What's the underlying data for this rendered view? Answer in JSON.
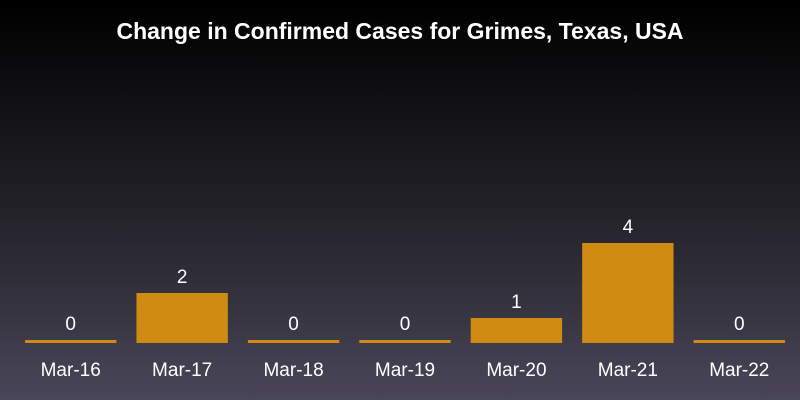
{
  "chart_data": {
    "type": "bar",
    "title": "Change in Confirmed Cases for Grimes, Texas, USA",
    "categories": [
      "Mar-16",
      "Mar-17",
      "Mar-18",
      "Mar-19",
      "Mar-20",
      "Mar-21",
      "Mar-22"
    ],
    "values": [
      0,
      2,
      0,
      0,
      1,
      4,
      0
    ],
    "data_labels": [
      "0",
      "2",
      "0",
      "0",
      "1",
      "4",
      "0"
    ],
    "xlabel": "",
    "ylabel": "",
    "ylim": [
      0,
      4
    ],
    "grid": false,
    "legend": "none",
    "bar_color": "#d08c12",
    "background_top": "#000000",
    "background_bottom": "#4a4659",
    "text_color": "#ffffff"
  }
}
